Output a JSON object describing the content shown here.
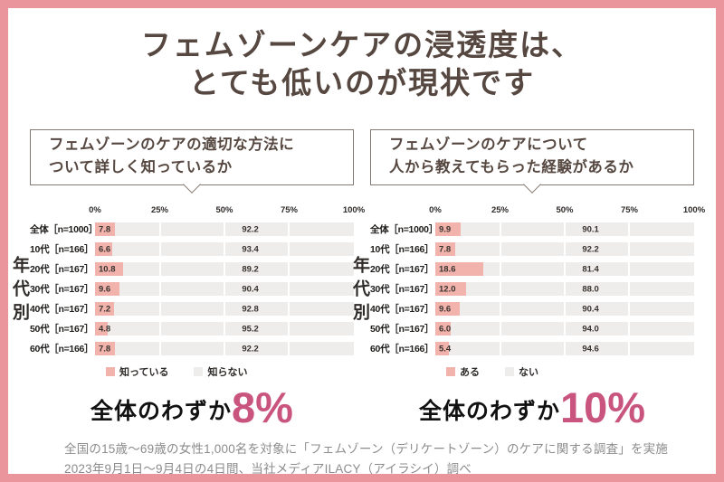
{
  "title": {
    "line1": "フェムゾーンケアの浸透度は、",
    "line2": "とても低いのが現状です"
  },
  "colors": {
    "frame": "#e9959b",
    "bar_positive": "#f2b3ac",
    "bar_negative": "#efedeb",
    "accent_pink": "#c9557f",
    "title_brown": "#564841"
  },
  "chart_data": [
    {
      "type": "bar",
      "orientation": "horizontal-stacked",
      "question_lines": [
        "フェムゾーンのケアの適切な方法に",
        "ついて詳しく知っているか"
      ],
      "group_axis_label": "年代別",
      "x_ticks": [
        "0%",
        "25%",
        "50%",
        "75%",
        "100%"
      ],
      "xlim": [
        0,
        100
      ],
      "categories": [
        "全体［n=1000］",
        "10代［n=166］",
        "20代［n=167］",
        "30代［n=167］",
        "40代［n=167］",
        "50代［n=167］",
        "60代［n=166］"
      ],
      "series": [
        {
          "name": "知っている",
          "color": "#f2b3ac",
          "values": [
            7.8,
            6.6,
            10.8,
            9.6,
            7.2,
            4.8,
            7.8
          ]
        },
        {
          "name": "知らない",
          "color": "#efedeb",
          "values": [
            92.2,
            93.4,
            89.2,
            90.4,
            92.8,
            95.2,
            92.2
          ]
        }
      ],
      "legend_position": "bottom"
    },
    {
      "type": "bar",
      "orientation": "horizontal-stacked",
      "question_lines": [
        "フェムゾーンのケアについて",
        "人から教えてもらった経験があるか"
      ],
      "group_axis_label": "年代別",
      "x_ticks": [
        "0%",
        "25%",
        "50%",
        "75%",
        "100%"
      ],
      "xlim": [
        0,
        100
      ],
      "categories": [
        "全体［n=1000］",
        "10代［n=166］",
        "20代［n=167］",
        "30代［n=167］",
        "40代［n=167］",
        "50代［n=167］",
        "60代［n=166］"
      ],
      "series": [
        {
          "name": "ある",
          "color": "#f2b3ac",
          "values": [
            9.9,
            7.8,
            18.6,
            12.0,
            9.6,
            6.0,
            5.4
          ]
        },
        {
          "name": "ない",
          "color": "#efedeb",
          "values": [
            90.1,
            92.2,
            81.4,
            88.0,
            90.4,
            94.0,
            94.6
          ]
        }
      ],
      "legend_position": "bottom"
    }
  ],
  "summaries": [
    {
      "prefix": "全体のわずか",
      "value": "8%"
    },
    {
      "prefix": "全体のわずか",
      "value": "10%"
    }
  ],
  "footer": {
    "line1": "全国の15歳〜69歳の女性1,000名を対象に「フェムゾーン（デリケートゾーン）のケアに関する調査」を実施",
    "line2": "2023年9月1日〜9月4日の4日間、当社メディアILACY（アイラシイ）調べ"
  }
}
